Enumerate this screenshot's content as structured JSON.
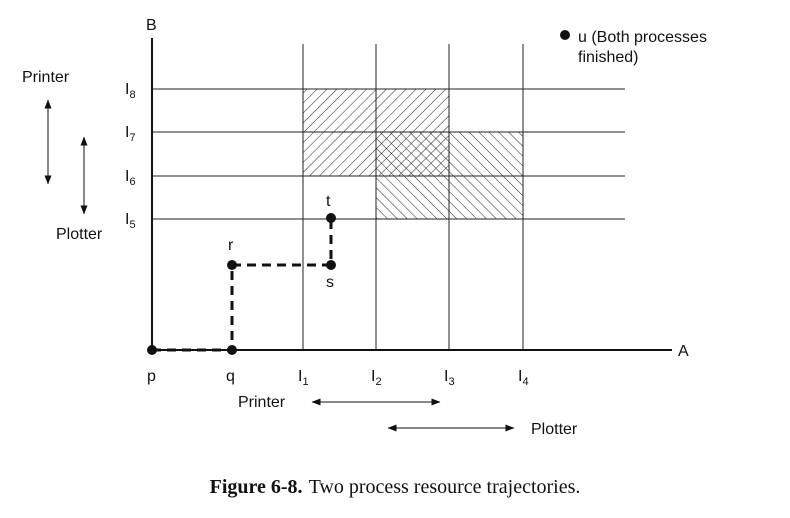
{
  "diagram": {
    "axes": {
      "y_label": "B",
      "x_label": "A"
    },
    "x_points": [
      {
        "name": "p",
        "sub": ""
      },
      {
        "name": "q",
        "sub": ""
      },
      {
        "name": "I",
        "sub": "1"
      },
      {
        "name": "I",
        "sub": "2"
      },
      {
        "name": "I",
        "sub": "3"
      },
      {
        "name": "I",
        "sub": "4"
      }
    ],
    "y_points": [
      {
        "name": "I",
        "sub": "5"
      },
      {
        "name": "I",
        "sub": "6"
      },
      {
        "name": "I",
        "sub": "7"
      },
      {
        "name": "I",
        "sub": "8"
      }
    ],
    "trajectory_points": [
      {
        "name": "p"
      },
      {
        "name": "q"
      },
      {
        "name": "r"
      },
      {
        "name": "s"
      },
      {
        "name": "t"
      }
    ],
    "resource_spans": {
      "x_printer": "Printer",
      "x_plotter": "Plotter",
      "y_printer": "Printer",
      "y_plotter": "Plotter"
    },
    "legend": {
      "line1": "u (Both processes",
      "line2": "finished)"
    }
  },
  "caption": {
    "number": "Figure 6-8.",
    "text": "Two process resource trajectories."
  }
}
